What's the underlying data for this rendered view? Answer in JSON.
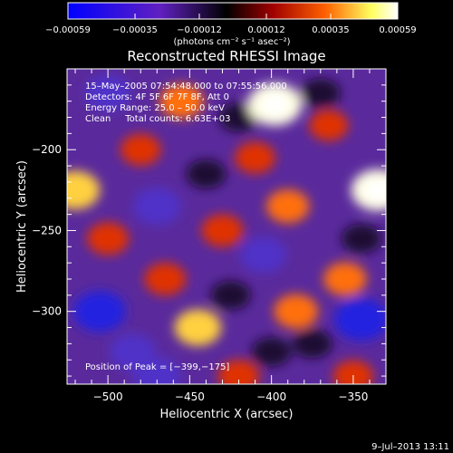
{
  "chart_data": {
    "type": "heatmap",
    "title": "Reconstructed RHESSI Image",
    "xlabel": "Heliocentric X (arcsec)",
    "ylabel": "Heliocentric Y (arcsec)",
    "xlim": [
      -525,
      -330
    ],
    "ylim": [
      -345,
      -150
    ],
    "x_ticks": [
      -500,
      -450,
      -400,
      -350
    ],
    "x_tick_labels": [
      "−500",
      "−450",
      "−400",
      "−350"
    ],
    "y_ticks": [
      -200,
      -250,
      -300
    ],
    "y_tick_labels": [
      "−200",
      "−250",
      "−300"
    ],
    "colorbar": {
      "range": [
        -0.00059,
        0.00059
      ],
      "ticks": [
        -0.00059,
        -0.00035,
        -0.00012,
        0.00012,
        0.00035,
        0.00059
      ],
      "tick_labels": [
        "−0.00059",
        "−0.00035",
        "−0.00012",
        "0.00012",
        "0.00035",
        "0.00059"
      ],
      "unit_label": "(photons cm⁻² s⁻¹ asec⁻²)",
      "colormap": [
        "#0000ff",
        "#6020c0",
        "#000000",
        "#a00000",
        "#ff6000",
        "#ffff60",
        "#ffffff"
      ]
    },
    "annotations": [
      "15–May–2005 07:54:48.000 to 07:55:56.000",
      "Detectors: 4F 5F 6F 7F 8F, Att 0",
      "Energy Range: 25.0 – 50.0 keV",
      "Clean     Total counts: 6.63E+03"
    ],
    "peak_label": "Position of Peak = [−399,−175]",
    "peak": [
      -399,
      -175
    ],
    "total_counts": "6.63E+03",
    "blobs": [
      {
        "x": -398,
        "y": -172,
        "v": 1.0
      },
      {
        "x": -335,
        "y": -225,
        "v": 0.95
      },
      {
        "x": -520,
        "y": -225,
        "v": 0.8
      },
      {
        "x": -455,
        "y": -170,
        "v": 0.6
      },
      {
        "x": -430,
        "y": -250,
        "v": 0.5
      },
      {
        "x": -390,
        "y": -235,
        "v": 0.55
      },
      {
        "x": -465,
        "y": -280,
        "v": 0.5
      },
      {
        "x": -445,
        "y": -310,
        "v": 0.7
      },
      {
        "x": -385,
        "y": -300,
        "v": 0.6
      },
      {
        "x": -355,
        "y": -280,
        "v": 0.55
      },
      {
        "x": -500,
        "y": -255,
        "v": 0.5
      },
      {
        "x": -350,
        "y": -340,
        "v": 0.45
      },
      {
        "x": -420,
        "y": -340,
        "v": 0.5
      },
      {
        "x": -480,
        "y": -200,
        "v": 0.45
      },
      {
        "x": -365,
        "y": -185,
        "v": 0.4
      },
      {
        "x": -410,
        "y": -205,
        "v": 0.45
      },
      {
        "x": -500,
        "y": -165,
        "v": -0.6
      },
      {
        "x": -470,
        "y": -235,
        "v": -0.7
      },
      {
        "x": -505,
        "y": -300,
        "v": -0.9
      },
      {
        "x": -470,
        "y": -340,
        "v": -0.7
      },
      {
        "x": -405,
        "y": -265,
        "v": -0.6
      },
      {
        "x": -345,
        "y": -305,
        "v": -1.0
      },
      {
        "x": -345,
        "y": -255,
        "v": -0.5
      },
      {
        "x": -370,
        "y": -165,
        "v": -0.4
      },
      {
        "x": -420,
        "y": -180,
        "v": -0.4
      },
      {
        "x": -440,
        "y": -215,
        "v": -0.45
      },
      {
        "x": -375,
        "y": -320,
        "v": -0.5
      },
      {
        "x": -485,
        "y": -325,
        "v": -0.6
      },
      {
        "x": -425,
        "y": -290,
        "v": -0.45
      },
      {
        "x": -400,
        "y": -325,
        "v": -0.5
      }
    ]
  },
  "footer": {
    "timestamp": "9–Jul–2013 13:11"
  }
}
